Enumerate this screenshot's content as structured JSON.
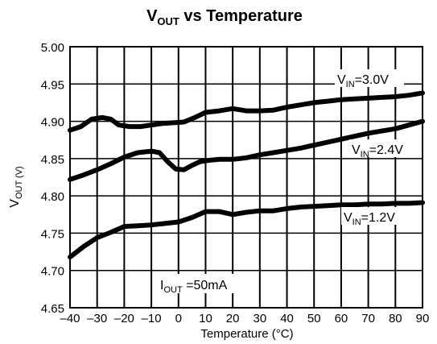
{
  "chart_data": {
    "type": "line",
    "title": {
      "main": "V",
      "sub": "OUT",
      "rest": " vs Temperature"
    },
    "xlabel": "Temperature (°C)",
    "ylabel": {
      "main": "V",
      "sub": "OUT",
      "unit": " (V)"
    },
    "xlim": [
      -40,
      90
    ],
    "ylim": [
      4.65,
      5.0
    ],
    "xticks": [
      -40,
      -30,
      -20,
      -10,
      0,
      10,
      20,
      30,
      40,
      50,
      60,
      70,
      80,
      90
    ],
    "xtick_labels": [
      "–40",
      "–30",
      "–20",
      "–10",
      "0",
      "10",
      "20",
      "30",
      "40",
      "50",
      "60",
      "70",
      "80",
      "90"
    ],
    "yticks": [
      4.65,
      4.7,
      4.75,
      4.8,
      4.85,
      4.9,
      4.95,
      5.0
    ],
    "ytick_labels": [
      "4.65",
      "4.70",
      "4.75",
      "4.80",
      "4.85",
      "4.90",
      "4.95",
      "5.00"
    ],
    "grid": true,
    "annotation": {
      "main": "I",
      "sub": "OUT",
      "rest": " =50mA"
    },
    "series": [
      {
        "name": {
          "main": "V",
          "sub": "IN",
          "rest": "=3.0V"
        },
        "x": [
          -40,
          -36,
          -32,
          -28,
          -25,
          -22,
          -18,
          -14,
          -10,
          -6,
          -2,
          2,
          6,
          10,
          15,
          20,
          25,
          30,
          35,
          40,
          45,
          50,
          55,
          60,
          65,
          70,
          75,
          80,
          85,
          90
        ],
        "y": [
          4.888,
          4.893,
          4.903,
          4.905,
          4.903,
          4.895,
          4.893,
          4.893,
          4.895,
          4.897,
          4.898,
          4.899,
          4.905,
          4.912,
          4.914,
          4.917,
          4.914,
          4.914,
          4.915,
          4.919,
          4.922,
          4.925,
          4.927,
          4.929,
          4.93,
          4.931,
          4.932,
          4.933,
          4.935,
          4.938
        ]
      },
      {
        "name": {
          "main": "V",
          "sub": "IN",
          "rest": "=2.4V"
        },
        "x": [
          -40,
          -35,
          -30,
          -25,
          -20,
          -15,
          -10,
          -7,
          -4,
          -1,
          2,
          5,
          8,
          12,
          15,
          20,
          25,
          30,
          35,
          40,
          45,
          50,
          55,
          60,
          65,
          70,
          75,
          80,
          85,
          90
        ],
        "y": [
          4.822,
          4.828,
          4.835,
          4.843,
          4.852,
          4.858,
          4.86,
          4.858,
          4.846,
          4.836,
          4.835,
          4.841,
          4.846,
          4.848,
          4.849,
          4.849,
          4.851,
          4.855,
          4.858,
          4.861,
          4.864,
          4.868,
          4.872,
          4.876,
          4.88,
          4.884,
          4.887,
          4.89,
          4.895,
          4.9
        ]
      },
      {
        "name": {
          "main": "V",
          "sub": "IN",
          "rest": "=1.2V"
        },
        "x": [
          -40,
          -35,
          -30,
          -25,
          -20,
          -15,
          -10,
          -5,
          0,
          5,
          10,
          15,
          20,
          25,
          30,
          35,
          40,
          45,
          50,
          55,
          60,
          65,
          70,
          75,
          80,
          85,
          90
        ],
        "y": [
          4.718,
          4.732,
          4.744,
          4.751,
          4.759,
          4.76,
          4.761,
          4.763,
          4.765,
          4.771,
          4.779,
          4.779,
          4.775,
          4.778,
          4.78,
          4.78,
          4.783,
          4.785,
          4.786,
          4.787,
          4.788,
          4.788,
          4.789,
          4.789,
          4.79,
          4.79,
          4.791
        ]
      }
    ]
  }
}
